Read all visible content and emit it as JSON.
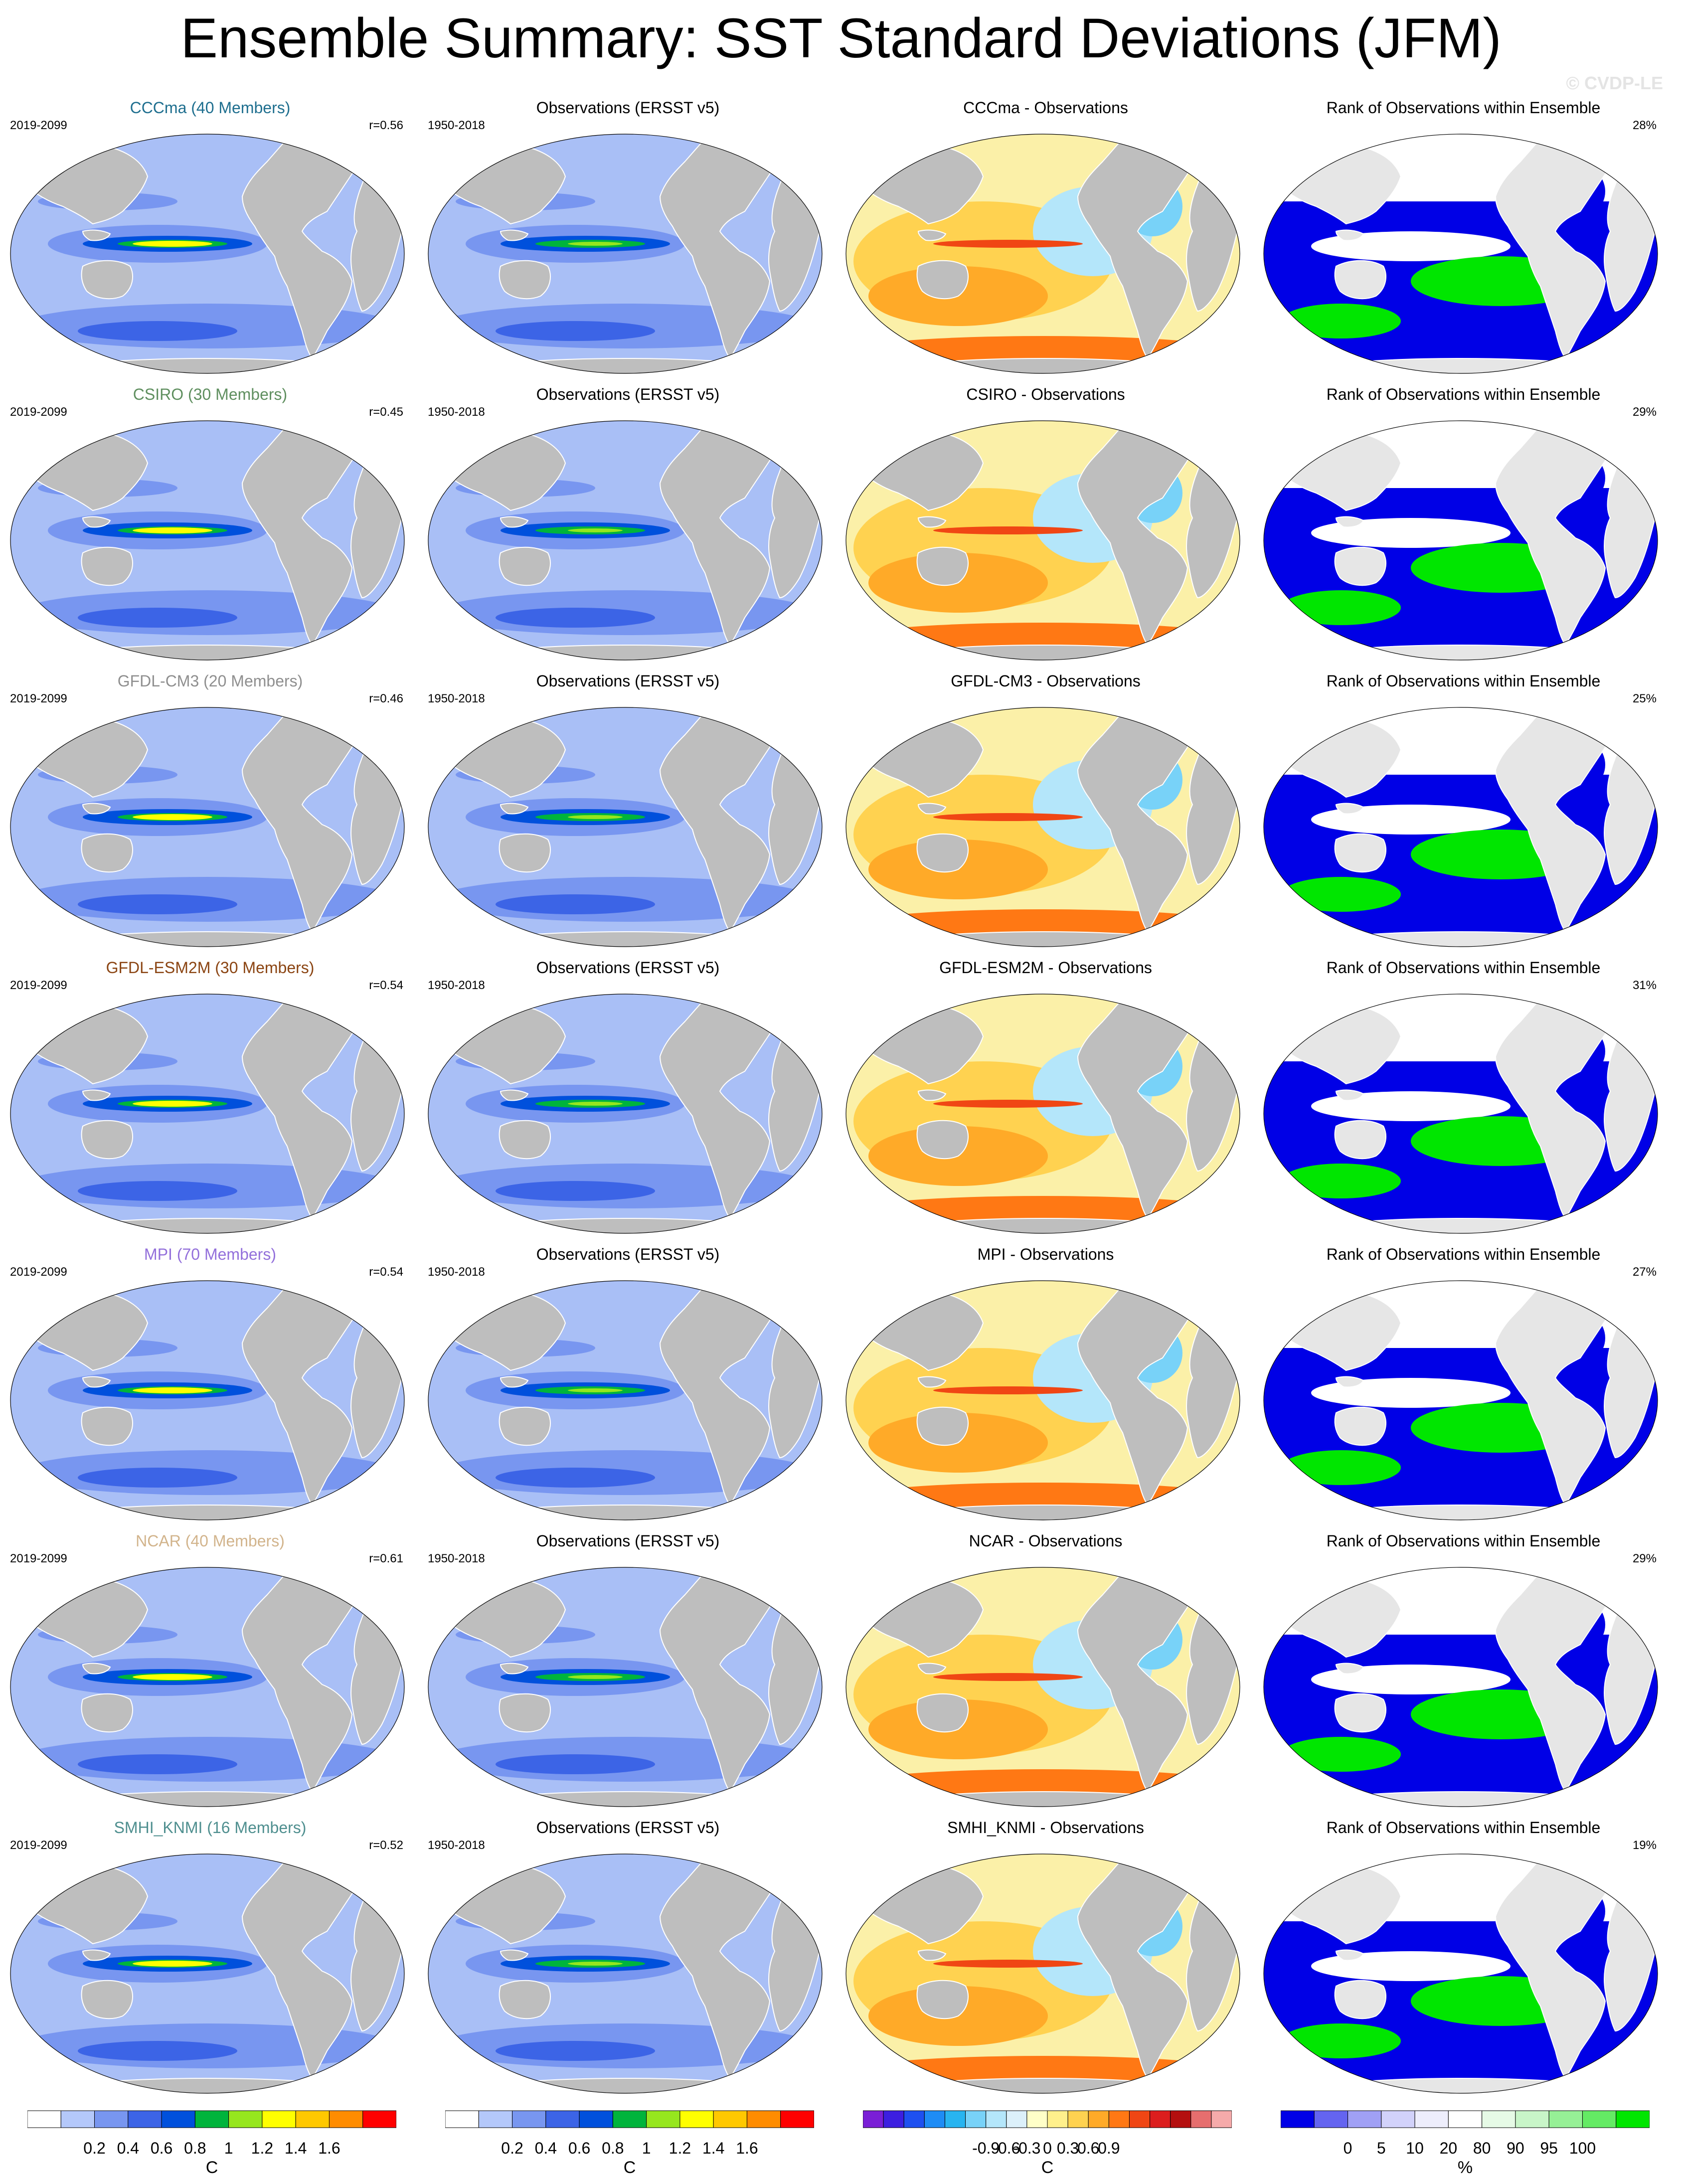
{
  "title": "Ensemble Summary: SST Standard Deviations (JFM)",
  "watermark": "© CVDP-LE",
  "colors": {
    "land": "#bebebe",
    "ocean_ensemble": "#a9bff6",
    "ocean_obs": "#a9bff6",
    "ocean_diff": "#fbf0a8",
    "ocean_rank": "#ffffff",
    "rank_land": "#e6e6e6",
    "title_colors": [
      "#1f6f8f",
      "#5f8f5f",
      "#8f8f8f",
      "#8b4513",
      "#9370db",
      "#d2b48c",
      "#4f8f8f"
    ]
  },
  "rows": [
    {
      "model_title": "CCCma (40 Members)",
      "model_period": "2019-2099",
      "pattern_corr": "r=0.56",
      "obs_title": "Observations (ERSST v5)",
      "obs_period": "1950-2018",
      "diff_title": "CCCma - Observations",
      "rank_title": "Rank of Observations within Ensemble",
      "rank_pct": "28%"
    },
    {
      "model_title": "CSIRO (30 Members)",
      "model_period": "2019-2099",
      "pattern_corr": "r=0.45",
      "obs_title": "Observations (ERSST v5)",
      "obs_period": "1950-2018",
      "diff_title": "CSIRO - Observations",
      "rank_title": "Rank of Observations within Ensemble",
      "rank_pct": "29%"
    },
    {
      "model_title": "GFDL-CM3 (20 Members)",
      "model_period": "2019-2099",
      "pattern_corr": "r=0.46",
      "obs_title": "Observations (ERSST v5)",
      "obs_period": "1950-2018",
      "diff_title": "GFDL-CM3 - Observations",
      "rank_title": "Rank of Observations within Ensemble",
      "rank_pct": "25%"
    },
    {
      "model_title": "GFDL-ESM2M (30 Members)",
      "model_period": "2019-2099",
      "pattern_corr": "r=0.54",
      "obs_title": "Observations (ERSST v5)",
      "obs_period": "1950-2018",
      "diff_title": "GFDL-ESM2M - Observations",
      "rank_title": "Rank of Observations within Ensemble",
      "rank_pct": "31%"
    },
    {
      "model_title": "MPI (70 Members)",
      "model_period": "2019-2099",
      "pattern_corr": "r=0.54",
      "obs_title": "Observations (ERSST v5)",
      "obs_period": "1950-2018",
      "diff_title": "MPI - Observations",
      "rank_title": "Rank of Observations within Ensemble",
      "rank_pct": "27%"
    },
    {
      "model_title": "NCAR (40 Members)",
      "model_period": "2019-2099",
      "pattern_corr": "r=0.61",
      "obs_title": "Observations (ERSST v5)",
      "obs_period": "1950-2018",
      "diff_title": "NCAR - Observations",
      "rank_title": "Rank of Observations within Ensemble",
      "rank_pct": "29%"
    },
    {
      "model_title": "SMHI_KNMI (16 Members)",
      "model_period": "2019-2099",
      "pattern_corr": "r=0.52",
      "obs_title": "Observations (ERSST v5)",
      "obs_period": "1950-2018",
      "diff_title": "SMHI_KNMI - Observations",
      "rank_title": "Rank of Observations within Ensemble",
      "rank_pct": "19%"
    }
  ],
  "colorbars": [
    {
      "unit": "C",
      "colors": [
        "#ffffff",
        "#b4c8fa",
        "#7896f0",
        "#3c64e6",
        "#0050dc",
        "#00b43c",
        "#96e61e",
        "#ffff00",
        "#ffc800",
        "#ff8c00",
        "#ff0000"
      ],
      "tick_labels": [
        "0.2",
        "0.4",
        "0.6",
        "0.8",
        "1",
        "1.2",
        "1.4",
        "1.6"
      ]
    },
    {
      "unit": "C",
      "colors": [
        "#ffffff",
        "#b4c8fa",
        "#7896f0",
        "#3c64e6",
        "#0050dc",
        "#00b43c",
        "#96e61e",
        "#ffff00",
        "#ffc800",
        "#ff8c00",
        "#ff0000"
      ],
      "tick_labels": [
        "0.2",
        "0.4",
        "0.6",
        "0.8",
        "1",
        "1.2",
        "1.4",
        "1.6"
      ]
    },
    {
      "unit": "C",
      "colors": [
        "#7a1fd6",
        "#3c1fe0",
        "#1e50f0",
        "#1e8cf5",
        "#28b4f0",
        "#78d2f8",
        "#b4e6fa",
        "#dcf0fa",
        "#ffffc8",
        "#fff08c",
        "#ffd250",
        "#ffaa28",
        "#ff7814",
        "#f04614",
        "#dc1e1e",
        "#b40f0f",
        "#e66e6e",
        "#f5aaaa"
      ],
      "tick_labels": [
        "-0.9",
        "-0.6",
        "-0.3",
        "0",
        "0.3",
        "0.6",
        "0.9"
      ]
    },
    {
      "unit": "%",
      "colors": [
        "#0000e6",
        "#6464f0",
        "#a0a0f5",
        "#d2d2fa",
        "#eeeefc",
        "#ffffff",
        "#e6fae6",
        "#c8f5c8",
        "#96f096",
        "#64eb64",
        "#00e600"
      ],
      "tick_labels": [
        "0",
        "5",
        "10",
        "20",
        "80",
        "90",
        "95",
        "100"
      ]
    }
  ]
}
